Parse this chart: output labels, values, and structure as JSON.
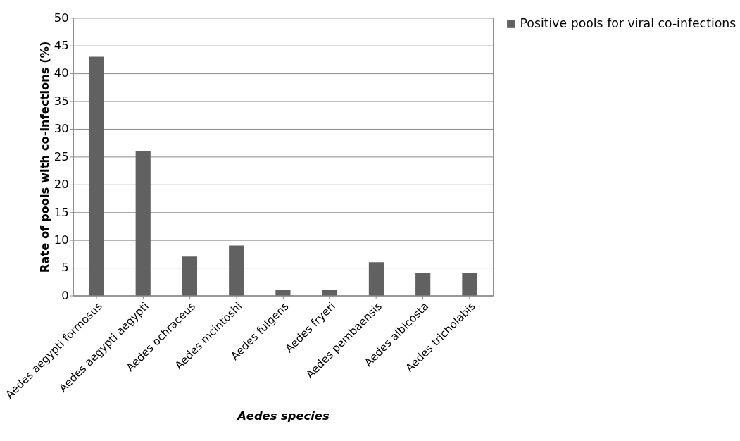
{
  "chart_data": {
    "type": "bar",
    "xlabel": "Aedes species",
    "ylabel": "Rate of pools with co-infections (%)",
    "categories": [
      "Aedes aegypti formosus",
      "Aedes aegypti aegypti",
      "Aedes ochraceus",
      "Aedes mcintoshi",
      "Aedes fulgens",
      "Aedes fryeri",
      "Aedes pembaensis",
      "Aedes albicosta",
      "Aedes tricholabis"
    ],
    "series": [
      {
        "name": "Positive pools for viral co-infections",
        "color": "#616161",
        "values": [
          43,
          26,
          7,
          9,
          1,
          1,
          6,
          4,
          4
        ]
      }
    ],
    "ylim": [
      0,
      50
    ],
    "yticks": [
      0,
      5,
      10,
      15,
      20,
      25,
      30,
      35,
      40,
      45,
      50
    ],
    "grid": "y",
    "legend": "right"
  }
}
